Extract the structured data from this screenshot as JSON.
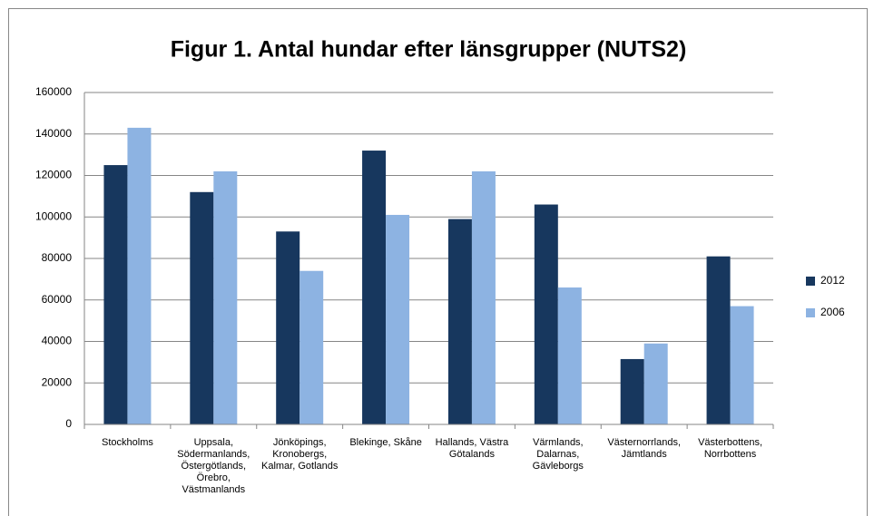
{
  "chart_data": {
    "type": "bar",
    "title": "Figur 1. Antal hundar efter länsgrupper (NUTS2)",
    "categories": [
      "Stockholms",
      "Uppsala, Södermanlands, Östergötlands, Örebro, Västmanlands",
      "Jönköpings, Kronobergs, Kalmar, Gotlands",
      "Blekinge, Skåne",
      "Hallands, Västra Götalands",
      "Värmlands, Dalarnas, Gävleborgs",
      "Västernorrlands, Jämtlands",
      "Västerbottens, Norrbottens"
    ],
    "series": [
      {
        "name": "2012",
        "color": "#17375e",
        "values": [
          125000,
          112000,
          93000,
          132000,
          99000,
          106000,
          31500,
          81000
        ]
      },
      {
        "name": "2006",
        "color": "#8db3e2",
        "values": [
          143000,
          122000,
          74000,
          101000,
          122000,
          66000,
          39000,
          57000
        ]
      }
    ],
    "ylim": [
      0,
      160000
    ],
    "yticks": [
      0,
      20000,
      40000,
      60000,
      80000,
      100000,
      120000,
      140000,
      160000
    ],
    "grid": true,
    "legend": "right"
  }
}
